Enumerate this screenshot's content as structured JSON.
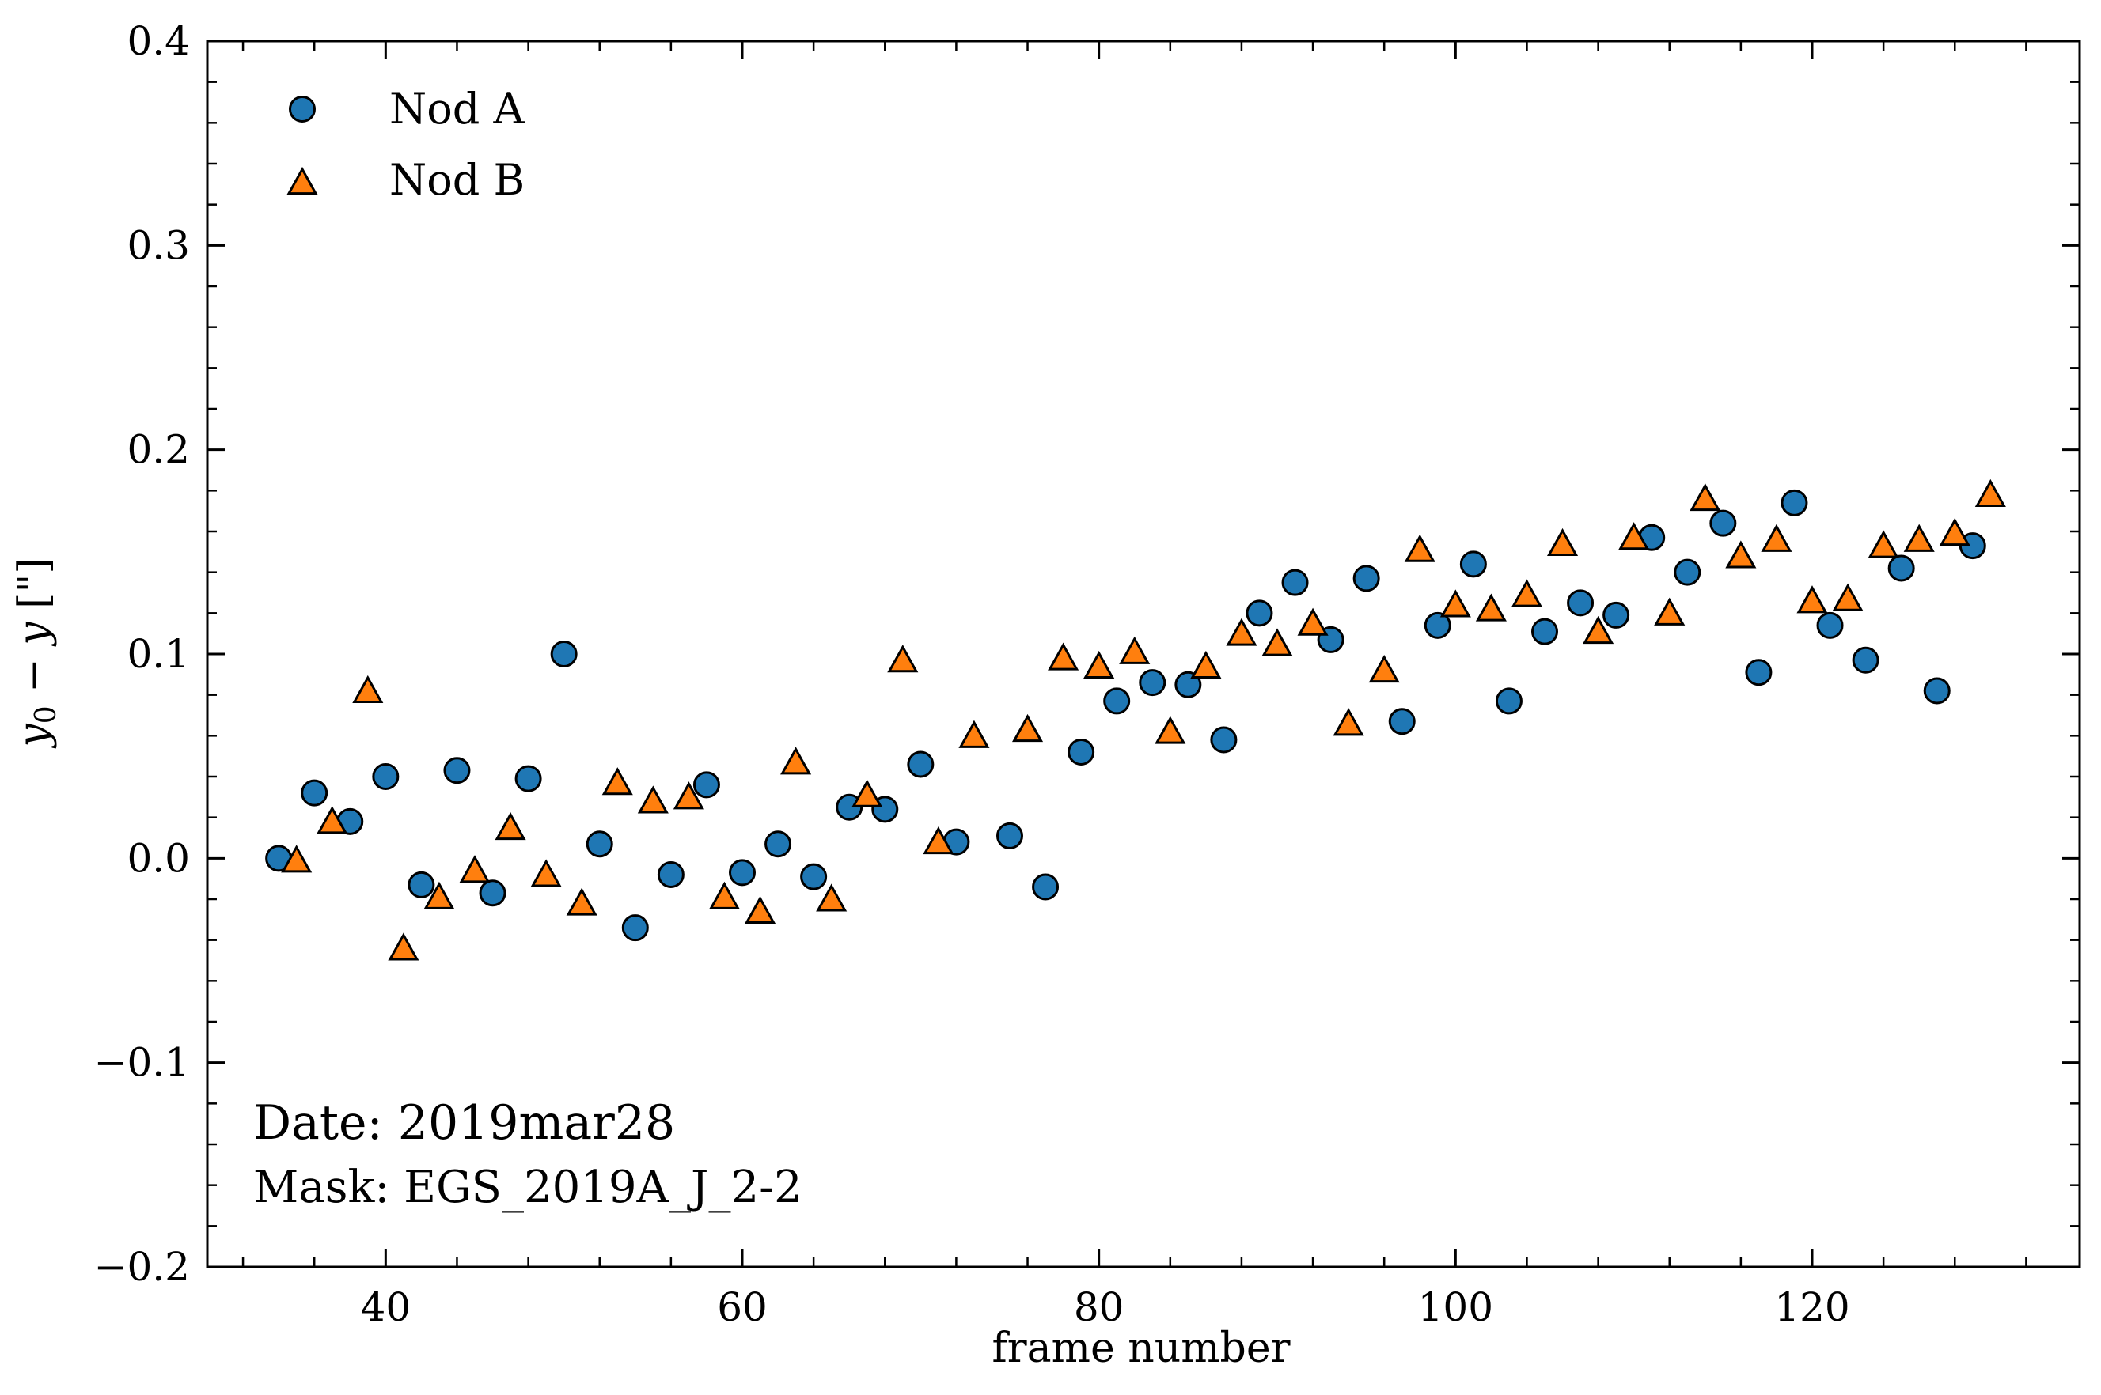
{
  "chart_data": {
    "type": "scatter",
    "xlabel": "frame number",
    "ylabel": "y0 − y [\"]",
    "xlim": [
      30,
      135
    ],
    "ylim": [
      -0.2,
      0.4
    ],
    "x_ticks": [
      40,
      60,
      80,
      100,
      120
    ],
    "y_ticks": [
      -0.2,
      -0.1,
      0.0,
      0.1,
      0.2,
      0.3,
      0.4
    ],
    "y_tick_labels": [
      "−0.2",
      "−0.1",
      "0.0",
      "0.1",
      "0.2",
      "0.3",
      "0.4"
    ],
    "grid": false,
    "legend_position": "top-left",
    "annotations": [
      "Date: 2019mar28",
      "Mask: EGS_2019A_J_2-2"
    ],
    "series": [
      {
        "name": "Nod A",
        "marker": "circle",
        "color": "#1f77b4",
        "points": [
          [
            34,
            0.0
          ],
          [
            36,
            0.032
          ],
          [
            38,
            0.018
          ],
          [
            40,
            0.04
          ],
          [
            42,
            -0.013
          ],
          [
            44,
            0.043
          ],
          [
            46,
            -0.017
          ],
          [
            48,
            0.039
          ],
          [
            50,
            0.1
          ],
          [
            52,
            0.007
          ],
          [
            54,
            -0.034
          ],
          [
            56,
            -0.008
          ],
          [
            58,
            0.036
          ],
          [
            60,
            -0.007
          ],
          [
            62,
            0.007
          ],
          [
            64,
            -0.009
          ],
          [
            66,
            0.025
          ],
          [
            68,
            0.024
          ],
          [
            70,
            0.046
          ],
          [
            72,
            0.008
          ],
          [
            75,
            0.011
          ],
          [
            77,
            -0.014
          ],
          [
            79,
            0.052
          ],
          [
            81,
            0.077
          ],
          [
            83,
            0.086
          ],
          [
            85,
            0.085
          ],
          [
            87,
            0.058
          ],
          [
            89,
            0.12
          ],
          [
            91,
            0.135
          ],
          [
            93,
            0.107
          ],
          [
            95,
            0.137
          ],
          [
            97,
            0.067
          ],
          [
            99,
            0.114
          ],
          [
            101,
            0.144
          ],
          [
            103,
            0.077
          ],
          [
            105,
            0.111
          ],
          [
            107,
            0.125
          ],
          [
            109,
            0.119
          ],
          [
            111,
            0.157
          ],
          [
            113,
            0.14
          ],
          [
            115,
            0.164
          ],
          [
            117,
            0.091
          ],
          [
            119,
            0.174
          ],
          [
            121,
            0.114
          ],
          [
            123,
            0.097
          ],
          [
            125,
            0.142
          ],
          [
            127,
            0.082
          ],
          [
            129,
            0.153
          ]
        ]
      },
      {
        "name": "Nod B",
        "marker": "triangle",
        "color": "#ff7f0e",
        "points": [
          [
            35,
            0.0
          ],
          [
            37,
            0.019
          ],
          [
            39,
            0.083
          ],
          [
            41,
            -0.043
          ],
          [
            43,
            -0.018
          ],
          [
            45,
            -0.005
          ],
          [
            47,
            0.016
          ],
          [
            49,
            -0.007
          ],
          [
            51,
            -0.021
          ],
          [
            53,
            0.038
          ],
          [
            55,
            0.029
          ],
          [
            57,
            0.031
          ],
          [
            59,
            -0.018
          ],
          [
            61,
            -0.025
          ],
          [
            63,
            0.048
          ],
          [
            65,
            -0.019
          ],
          [
            67,
            0.032
          ],
          [
            69,
            0.098
          ],
          [
            71,
            0.009
          ],
          [
            73,
            0.061
          ],
          [
            76,
            0.064
          ],
          [
            78,
            0.099
          ],
          [
            80,
            0.095
          ],
          [
            82,
            0.102
          ],
          [
            84,
            0.063
          ],
          [
            86,
            0.095
          ],
          [
            88,
            0.111
          ],
          [
            90,
            0.106
          ],
          [
            92,
            0.116
          ],
          [
            94,
            0.067
          ],
          [
            96,
            0.093
          ],
          [
            98,
            0.152
          ],
          [
            100,
            0.125
          ],
          [
            102,
            0.123
          ],
          [
            104,
            0.13
          ],
          [
            106,
            0.155
          ],
          [
            108,
            0.112
          ],
          [
            110,
            0.158
          ],
          [
            112,
            0.121
          ],
          [
            114,
            0.177
          ],
          [
            116,
            0.149
          ],
          [
            118,
            0.157
          ],
          [
            120,
            0.127
          ],
          [
            122,
            0.128
          ],
          [
            124,
            0.154
          ],
          [
            126,
            0.157
          ],
          [
            128,
            0.16
          ],
          [
            130,
            0.179
          ]
        ]
      }
    ]
  }
}
